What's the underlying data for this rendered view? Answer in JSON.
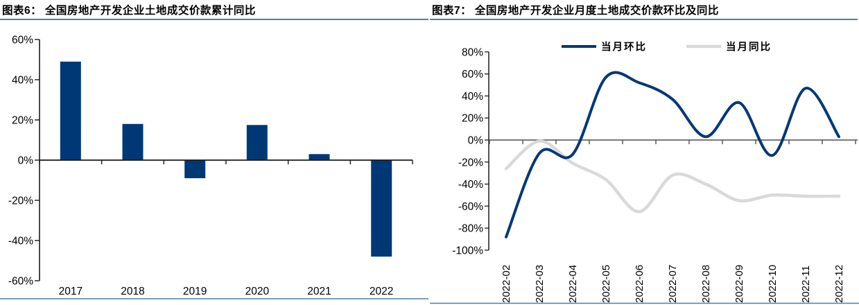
{
  "figures": {
    "left": {
      "label": "图表6：",
      "title": "图表6：  全国房地产开发企业土地成交价款累计同比"
    },
    "right": {
      "label": "图表7：",
      "title": "图表7：  全国房地产开发企业月度土地成交价款环比及同比"
    }
  },
  "colors": {
    "navy": "#003876",
    "light_gray_series": "#D9D9D9",
    "rule_blue": "#4F7BA7",
    "axis_black": "#1a1a1a",
    "axis_gray": "#4d4d4d",
    "text": "#000000"
  },
  "chart_data": [
    {
      "type": "bar",
      "title": "全国房地产开发企业土地成交价款累计同比",
      "categories": [
        "2017",
        "2018",
        "2019",
        "2020",
        "2021",
        "2022"
      ],
      "values": [
        49,
        18,
        -9,
        17.5,
        3,
        -48
      ],
      "ylabel": "",
      "xlabel": "",
      "ylim": [
        -60,
        60
      ],
      "ytick_step": 20,
      "ytick_labels": [
        "60%",
        "40%",
        "20%",
        "0%",
        "-20%",
        "-40%",
        "-60%"
      ],
      "grid": false,
      "bar_color": "#003876"
    },
    {
      "type": "line",
      "title": "全国房地产开发企业月度土地成交价款环比及同比",
      "x": [
        "2022-02",
        "2022-03",
        "2022-04",
        "2022-05",
        "2022-06",
        "2022-07",
        "2022-08",
        "2022-09",
        "2022-10",
        "2022-11",
        "2022-12"
      ],
      "series": [
        {
          "name": "当月环比",
          "color": "#003876",
          "values": [
            -88,
            -12,
            -13,
            57,
            52,
            37,
            3,
            34,
            -14,
            47,
            3
          ]
        },
        {
          "name": "当月同比",
          "color": "#D9D9D9",
          "values": [
            -26,
            -1,
            -21,
            -36,
            -65,
            -32,
            -40,
            -55,
            -50,
            -51,
            -51
          ]
        }
      ],
      "ylim": [
        -100,
        80
      ],
      "ytick_step": 20,
      "ytick_labels": [
        "80%",
        "60%",
        "40%",
        "20%",
        "0%",
        "-20%",
        "-40%",
        "-60%",
        "-80%",
        "-100%"
      ],
      "grid": false,
      "legend_position": "top",
      "smooth": true
    }
  ]
}
